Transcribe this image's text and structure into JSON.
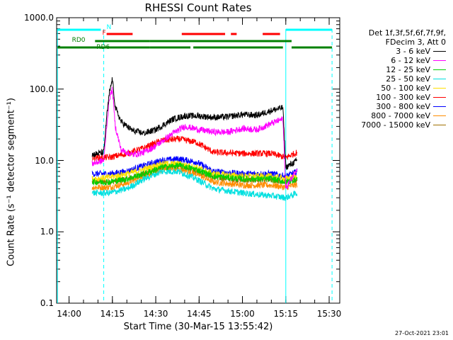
{
  "chart_data": {
    "type": "line",
    "title": "RHESSI Count Rates",
    "xlabel": "Start Time (30-Mar-15 13:55:42)",
    "ylabel": "Count Rate (s⁻¹ detector segment⁻¹)",
    "yscale": "log",
    "ylim": [
      0.1,
      1000
    ],
    "xlim": [
      "13:55:42",
      "15:33:40"
    ],
    "ytick_labels": [
      "0.1",
      "1.0",
      "10.0",
      "100.0",
      "1000.0"
    ],
    "xtick_labels": [
      "14:00",
      "14:15",
      "14:30",
      "14:45",
      "15:00",
      "15:15",
      "15:30"
    ],
    "timestamp": "27-Oct-2021 23:01",
    "legend": {
      "header": [
        "Det 1f,3f,5f,6f,7f,9f,",
        "FDecim 3, Att 0"
      ],
      "placement": "right"
    },
    "series": [
      {
        "name": "3 - 6 keV",
        "color": "#000000",
        "points": [
          [
            "14:08",
            12
          ],
          [
            "14:12",
            13
          ],
          [
            "14:13",
            40
          ],
          [
            "14:14",
            90
          ],
          [
            "14:15",
            140
          ],
          [
            "14:16",
            55
          ],
          [
            "14:18",
            35
          ],
          [
            "14:22",
            26
          ],
          [
            "14:26",
            24
          ],
          [
            "14:30",
            27
          ],
          [
            "14:36",
            38
          ],
          [
            "14:40",
            42
          ],
          [
            "14:45",
            42
          ],
          [
            "14:50",
            40
          ],
          [
            "14:55",
            41
          ],
          [
            "15:00",
            44
          ],
          [
            "15:05",
            43
          ],
          [
            "15:10",
            50
          ],
          [
            "15:14",
            55
          ],
          [
            "15:15",
            8
          ],
          [
            "15:19",
            10
          ]
        ]
      },
      {
        "name": "6 - 12 keV",
        "color": "#ff00ff",
        "points": [
          [
            "14:08",
            9
          ],
          [
            "14:12",
            10
          ],
          [
            "14:13",
            30
          ],
          [
            "14:14",
            75
          ],
          [
            "14:15",
            100
          ],
          [
            "14:16",
            30
          ],
          [
            "14:18",
            14
          ],
          [
            "14:22",
            12
          ],
          [
            "14:26",
            13
          ],
          [
            "14:30",
            16
          ],
          [
            "14:36",
            24
          ],
          [
            "14:40",
            30
          ],
          [
            "14:45",
            27
          ],
          [
            "14:50",
            25
          ],
          [
            "14:55",
            25
          ],
          [
            "15:00",
            28
          ],
          [
            "15:05",
            27
          ],
          [
            "15:10",
            33
          ],
          [
            "15:14",
            38
          ],
          [
            "15:15",
            4
          ],
          [
            "15:19",
            8
          ]
        ]
      },
      {
        "name": "12 - 25 keV",
        "color": "#00d000",
        "points": [
          [
            "14:08",
            5
          ],
          [
            "14:14",
            5
          ],
          [
            "14:20",
            5.5
          ],
          [
            "14:26",
            6.5
          ],
          [
            "14:32",
            8
          ],
          [
            "14:38",
            8.5
          ],
          [
            "14:44",
            7.5
          ],
          [
            "14:50",
            6
          ],
          [
            "15:00",
            5.5
          ],
          [
            "15:10",
            5.5
          ],
          [
            "15:15",
            5
          ],
          [
            "15:19",
            5.5
          ]
        ]
      },
      {
        "name": "25 - 50 keV",
        "color": "#00e0e0",
        "points": [
          [
            "14:08",
            3.5
          ],
          [
            "14:14",
            3.5
          ],
          [
            "14:20",
            4
          ],
          [
            "14:26",
            5.5
          ],
          [
            "14:32",
            7
          ],
          [
            "14:38",
            7
          ],
          [
            "14:44",
            5.5
          ],
          [
            "14:50",
            4
          ],
          [
            "15:00",
            3.5
          ],
          [
            "15:10",
            3.2
          ],
          [
            "15:15",
            3
          ],
          [
            "15:19",
            3.5
          ]
        ]
      },
      {
        "name": "50 - 100 keV",
        "color": "#ffe000",
        "points": [
          [
            "14:08",
            5.5
          ],
          [
            "14:14",
            5.8
          ],
          [
            "14:20",
            6.5
          ],
          [
            "14:26",
            7.5
          ],
          [
            "14:32",
            9
          ],
          [
            "14:38",
            9
          ],
          [
            "14:44",
            8
          ],
          [
            "14:50",
            6.5
          ],
          [
            "15:00",
            6
          ],
          [
            "15:10",
            6
          ],
          [
            "15:15",
            5.5
          ],
          [
            "15:19",
            6
          ]
        ]
      },
      {
        "name": "100 - 300 keV",
        "color": "#ff0000",
        "points": [
          [
            "14:08",
            11
          ],
          [
            "14:14",
            11
          ],
          [
            "14:20",
            12.5
          ],
          [
            "14:26",
            15
          ],
          [
            "14:32",
            19
          ],
          [
            "14:38",
            20
          ],
          [
            "14:44",
            18
          ],
          [
            "14:50",
            13
          ],
          [
            "15:00",
            12.5
          ],
          [
            "15:10",
            12.5
          ],
          [
            "15:15",
            11
          ],
          [
            "15:19",
            13
          ]
        ]
      },
      {
        "name": "300 - 800 keV",
        "color": "#0000ff",
        "points": [
          [
            "14:08",
            6.5
          ],
          [
            "14:14",
            6.5
          ],
          [
            "14:20",
            7
          ],
          [
            "14:26",
            8.5
          ],
          [
            "14:32",
            10
          ],
          [
            "14:38",
            10.5
          ],
          [
            "14:44",
            9.5
          ],
          [
            "14:50",
            7
          ],
          [
            "15:00",
            6.5
          ],
          [
            "15:10",
            6.5
          ],
          [
            "15:15",
            6
          ],
          [
            "15:19",
            7
          ]
        ]
      },
      {
        "name": "800 - 7000 keV",
        "color": "#ff8c00",
        "points": [
          [
            "14:08",
            4.2
          ],
          [
            "14:14",
            4.2
          ],
          [
            "14:20",
            4.8
          ],
          [
            "14:26",
            6
          ],
          [
            "14:32",
            7.5
          ],
          [
            "14:38",
            7.5
          ],
          [
            "14:44",
            6.5
          ],
          [
            "14:50",
            5
          ],
          [
            "15:00",
            4.5
          ],
          [
            "15:10",
            4.5
          ],
          [
            "15:15",
            4.2
          ],
          [
            "15:19",
            4.6
          ]
        ]
      },
      {
        "name": "7000 - 15000 keV",
        "color": "#a07000",
        "points": [
          [
            "14:08",
            5
          ],
          [
            "14:14",
            5
          ],
          [
            "14:20",
            5.5
          ],
          [
            "14:26",
            6.5
          ],
          [
            "14:32",
            8
          ],
          [
            "14:38",
            8.2
          ],
          [
            "14:44",
            7.2
          ],
          [
            "14:50",
            5.8
          ],
          [
            "15:00",
            5.3
          ],
          [
            "15:10",
            5.3
          ],
          [
            "15:15",
            5
          ],
          [
            "15:19",
            5.4
          ]
        ]
      }
    ],
    "flags": {
      "night": {
        "label": "N",
        "color": "#00ffff",
        "segments": [
          [
            "13:56",
            "14:11"
          ],
          [
            "15:15",
            "15:31"
          ]
        ]
      },
      "flare": {
        "label": "F",
        "color": "#ff0000",
        "segments": [
          [
            "14:13",
            "14:22"
          ],
          [
            "14:39",
            "14:54"
          ],
          [
            "14:56",
            "14:58"
          ],
          [
            "15:07",
            "15:13"
          ]
        ]
      },
      "rd0": {
        "label": "RD0",
        "color": "#008000",
        "segments": [
          [
            "14:09",
            "14:28"
          ],
          [
            "14:28",
            "15:17"
          ]
        ]
      },
      "rd6": {
        "label": "RD6",
        "color": "#008000",
        "segments": [
          [
            "13:56",
            "14:28"
          ],
          [
            "14:28",
            "14:42"
          ],
          [
            "14:43",
            "15:14"
          ],
          [
            "15:17",
            "15:31"
          ]
        ]
      }
    },
    "vlines": [
      {
        "t": "13:56",
        "style": "solid",
        "color": "#00ffff"
      },
      {
        "t": "14:12",
        "style": "dashed",
        "color": "#00ffff"
      },
      {
        "t": "15:15",
        "style": "solid",
        "color": "#00ffff"
      },
      {
        "t": "15:31",
        "style": "dashed",
        "color": "#00ffff"
      }
    ],
    "colors": {
      "axis": "#000000",
      "background": "#ffffff"
    }
  }
}
